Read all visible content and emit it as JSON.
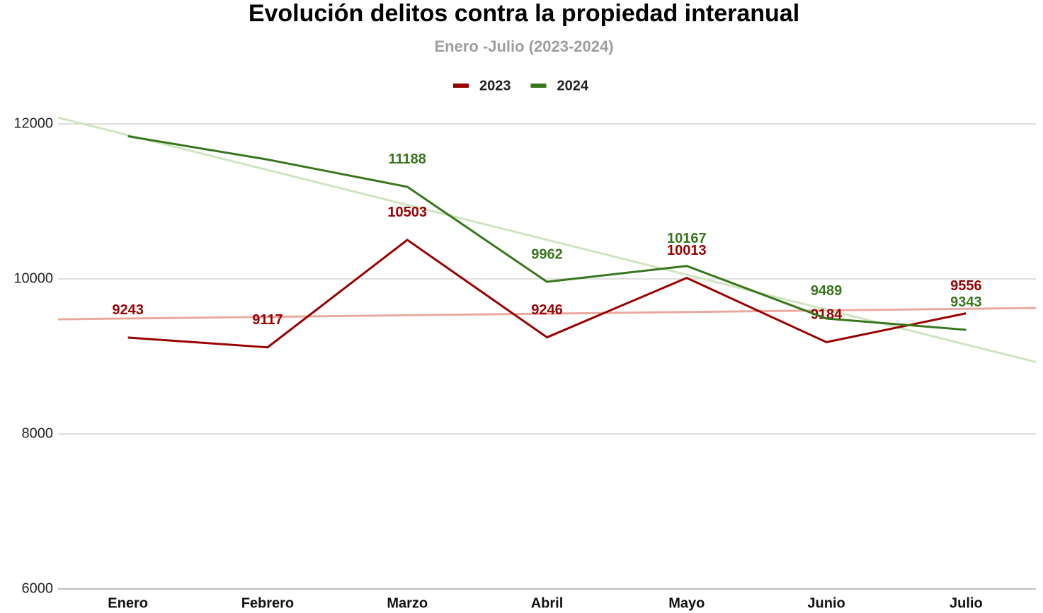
{
  "chart_data": {
    "type": "line",
    "title": "Evolución delitos contra la propiedad  interanual",
    "subtitle": "Enero -Julio (2023-2024)",
    "categories": [
      "Enero",
      "Febrero",
      "Marzo",
      "Abril",
      "Mayo",
      "Junio",
      "Julio"
    ],
    "series": [
      {
        "name": "2023",
        "color": "#990000",
        "trend_color": "#e8aaa0",
        "values": [
          9243,
          9117,
          10503,
          9246,
          10013,
          9184,
          9556
        ]
      },
      {
        "name": "2024",
        "color": "#38761d",
        "trend_color": "#cfe5c0",
        "values": [
          11840,
          11540,
          11188,
          9962,
          10167,
          9489,
          9343
        ],
        "value_labels": [
          null,
          null,
          "11188",
          "9962",
          "10167",
          "9489",
          "9343"
        ]
      }
    ],
    "ylim": [
      6000,
      12000
    ],
    "yticks": [
      6000,
      8000,
      10000,
      12000
    ],
    "grid": true,
    "trendline": true,
    "legend": "top"
  }
}
